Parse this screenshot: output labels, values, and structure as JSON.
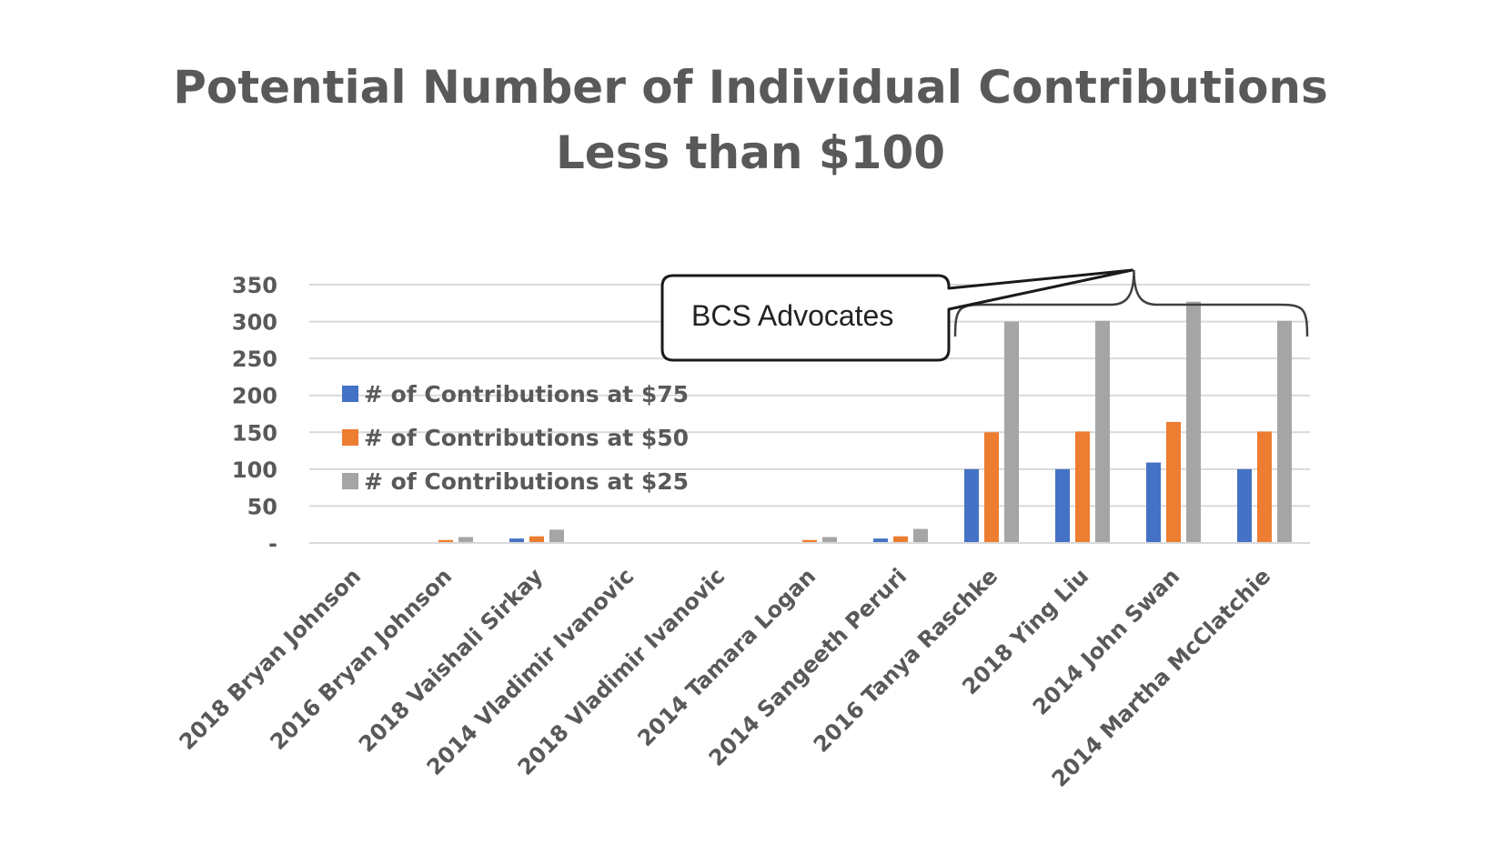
{
  "chart_data": {
    "type": "bar",
    "title": "Potential Number of Individual Contributions Less than $100",
    "title_lines": [
      "Potential Number of Individual Contributions",
      "Less than $100"
    ],
    "xlabel": "",
    "ylabel": "",
    "ylim": [
      0,
      350
    ],
    "yticks": [
      0,
      50,
      100,
      150,
      200,
      250,
      300,
      350
    ],
    "ytick_labels": [
      "-",
      "50",
      "100",
      "150",
      "200",
      "250",
      "300",
      "350"
    ],
    "grid": true,
    "legend_position": "left",
    "categories": [
      "2018 Bryan Johnson",
      "2016 Bryan Johnson",
      "2018 Vaishali Sirkay",
      "2014 Vladimir Ivanovic",
      "2018 Vladimir Ivanovic",
      "2014 Tamara Logan",
      "2014 Sangeeth Peruri",
      "2016 Tanya Raschke",
      "2018 Ying Liu",
      "2014 John Swan",
      "2014 Martha McClatchie"
    ],
    "series": [
      {
        "name": "# of Contributions at $75",
        "color": "#4472C4",
        "values": [
          0,
          1,
          6,
          0,
          0,
          1,
          6,
          100,
          100,
          109,
          100
        ]
      },
      {
        "name": "# of Contributions at $50",
        "color": "#ED7D31",
        "values": [
          0,
          4,
          9,
          0,
          0,
          4,
          9,
          150,
          151,
          164,
          151
        ]
      },
      {
        "name": "# of Contributions at $25",
        "color": "#A5A5A5",
        "values": [
          0,
          8,
          18,
          0,
          0,
          8,
          19,
          300,
          301,
          327,
          301
        ]
      }
    ],
    "annotation": {
      "text": "BCS Advocates",
      "spans_categories": [
        "2016 Tanya Raschke",
        "2018 Ying Liu",
        "2014 John Swan",
        "2014 Martha McClatchie"
      ]
    }
  },
  "colors": {
    "title": "#595959",
    "axis_text": "#595959",
    "grid": "#D9D9D9"
  }
}
